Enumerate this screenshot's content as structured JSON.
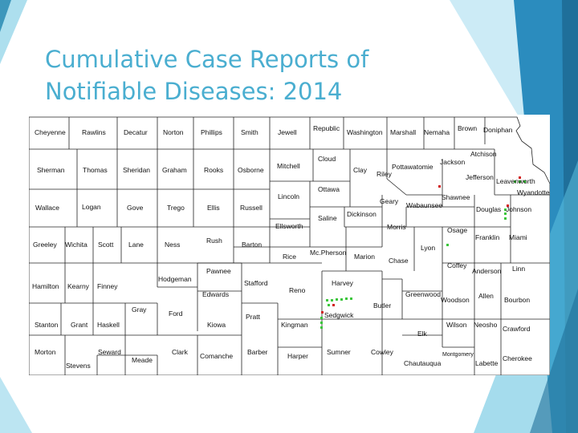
{
  "slide": {
    "title_line1": "Cumulative Case Reports of",
    "title_line2": "Notifiable Diseases: 2014",
    "title_color": "#4aaed0",
    "accent_colors": [
      "#1f6f9a",
      "#2b8cbe",
      "#5bc0de",
      "#8fd3ea"
    ]
  },
  "map": {
    "marker_colors": {
      "red": "#d21f1f",
      "green": "#3cc63c"
    },
    "counties": [
      "Cheyenne",
      "Rawlins",
      "Decatur",
      "Norton",
      "Phillips",
      "Smith",
      "Jewell",
      "Republic",
      "Washington",
      "Marshall",
      "Nemaha",
      "Brown",
      "Doniphan",
      "Sherman",
      "Thomas",
      "Sheridan",
      "Graham",
      "Rooks",
      "Osborne",
      "Mitchell",
      "Cloud",
      "Clay",
      "Riley",
      "Pottawatomie",
      "Jackson",
      "Atchison",
      "Jefferson",
      "Leavenworth",
      "Wyandotte",
      "Wallace",
      "Logan",
      "Gove",
      "Trego",
      "Ellis",
      "Russell",
      "Lincoln",
      "Ottawa",
      "Geary",
      "Wabaunsee",
      "Shawnee",
      "Douglas",
      "Johnson",
      "Saline",
      "Dickinson",
      "Ellsworth",
      "Morris",
      "Osage",
      "Franklin",
      "Miami",
      "Greeley",
      "Wichita",
      "Scott",
      "Lane",
      "Ness",
      "Rush",
      "Barton",
      "Rice",
      "Mc.Pherson",
      "Marion",
      "Chase",
      "Lyon",
      "Coffey",
      "Anderson",
      "Linn",
      "Pawnee",
      "Hodgeman",
      "Stafford",
      "Harvey",
      "Hamilton",
      "Kearny",
      "Finney",
      "Edwards",
      "Reno",
      "Greenwood",
      "Allen",
      "Woodson",
      "Bourbon",
      "Gray",
      "Ford",
      "Butler",
      "Sedgwick",
      "Pratt",
      "Stanton",
      "Grant",
      "Haskell",
      "Kiowa",
      "Kingman",
      "Wilson",
      "Neosho",
      "Crawford",
      "Elk",
      "Morton",
      "Seward",
      "Clark",
      "Comanche",
      "Barber",
      "Harper",
      "Sumner",
      "Cowley",
      "Montgomery",
      "Chautauqua",
      "Labette",
      "Cherokee",
      "Meade",
      "Stevens"
    ]
  }
}
